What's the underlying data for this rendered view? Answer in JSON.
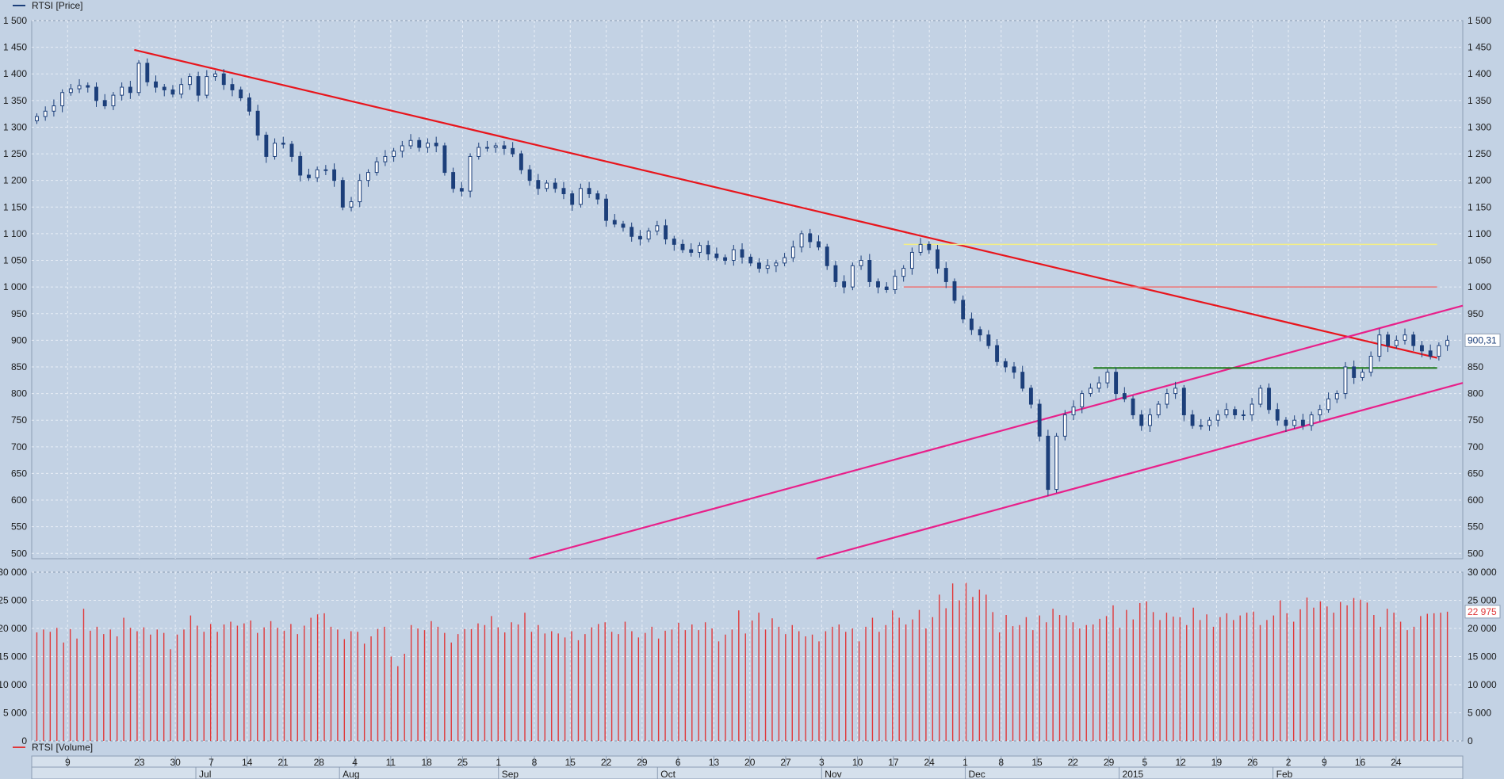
{
  "legend": {
    "price": "RTSI [Price]",
    "volume": "RTSI [Volume]"
  },
  "colors": {
    "background": "#c3d2e4",
    "grid": "#e8eef6",
    "candle": "#1c3f7a",
    "volume": "#e0383a",
    "trend_red": "#e8151c",
    "channel": "#e8208a",
    "resistance_yellow": "#f3ee86",
    "support_green": "#1f7a1f",
    "level_red": "#ee7474"
  },
  "chart_data": [
    {
      "type": "candlestick",
      "title": "RTSI [Price]",
      "ylim": [
        490,
        1500
      ],
      "y_ticks": [
        "1 500",
        "1 450",
        "1 400",
        "1 350",
        "1 300",
        "1 250",
        "1 200",
        "1 150",
        "1 100",
        "1 050",
        "1 000",
        "950",
        "900",
        "850",
        "800",
        "750",
        "700",
        "650",
        "600",
        "550",
        "500"
      ],
      "last_value": "900,31",
      "x_day_labels": [
        "9",
        "23",
        "30",
        "7",
        "14",
        "21",
        "28",
        "4",
        "11",
        "18",
        "25",
        "1",
        "8",
        "15",
        "22",
        "29",
        "6",
        "13",
        "20",
        "27",
        "3",
        "10",
        "17",
        "24",
        "1",
        "8",
        "15",
        "22",
        "29",
        "5",
        "12",
        "19",
        "26",
        "2",
        "9",
        "16",
        "24"
      ],
      "x_month_labels": [
        "Jul",
        "Aug",
        "Sep",
        "Oct",
        "Nov",
        "Dec",
        "2015",
        "Feb"
      ],
      "x_day_positions": [
        9,
        23,
        30,
        37,
        44,
        51,
        58,
        65,
        72,
        79,
        86,
        93,
        100,
        107,
        114,
        121,
        128,
        135,
        142,
        149,
        156,
        163,
        170,
        177,
        184,
        191,
        198,
        205,
        212,
        219,
        226,
        233,
        240,
        247,
        254,
        261,
        268
      ],
      "x_month_positions": [
        34,
        62,
        93,
        124,
        156,
        184,
        214,
        244
      ],
      "x_domain": [
        2,
        281
      ],
      "close": [
        1320,
        1330,
        1340,
        1365,
        1372,
        1378,
        1375,
        1350,
        1340,
        1360,
        1375,
        1365,
        1420,
        1385,
        1375,
        1370,
        1362,
        1380,
        1395,
        1360,
        1395,
        1400,
        1380,
        1370,
        1355,
        1330,
        1285,
        1245,
        1270,
        1268,
        1245,
        1210,
        1205,
        1220,
        1220,
        1200,
        1150,
        1160,
        1200,
        1215,
        1235,
        1245,
        1255,
        1265,
        1275,
        1262,
        1270,
        1265,
        1215,
        1185,
        1180,
        1245,
        1262,
        1262,
        1265,
        1260,
        1250,
        1220,
        1200,
        1185,
        1195,
        1185,
        1175,
        1155,
        1185,
        1175,
        1165,
        1125,
        1118,
        1112,
        1095,
        1090,
        1105,
        1115,
        1090,
        1080,
        1070,
        1065,
        1078,
        1062,
        1055,
        1050,
        1070,
        1056,
        1045,
        1035,
        1040,
        1045,
        1055,
        1075,
        1100,
        1085,
        1075,
        1040,
        1010,
        1000,
        1040,
        1050,
        1010,
        1000,
        995,
        1020,
        1035,
        1065,
        1080,
        1070,
        1035,
        1010,
        975,
        940,
        920,
        910,
        890,
        860,
        850,
        840,
        810,
        780,
        720,
        620,
        720,
        760,
        775,
        800,
        810,
        820,
        840,
        800,
        790,
        760,
        740,
        760,
        780,
        800,
        810,
        760,
        740,
        740,
        750,
        760,
        770,
        760,
        760,
        780,
        810,
        770,
        750,
        740,
        750,
        740,
        760,
        770,
        790,
        800,
        850,
        830,
        840,
        870,
        910,
        890,
        900,
        910,
        890,
        880,
        870,
        890,
        900
      ]
    },
    {
      "type": "bar",
      "title": "RTSI [Volume]",
      "ylim": [
        0,
        30000
      ],
      "y_ticks": [
        "30 000",
        "25 000",
        "20 000",
        "15 000",
        "10 000",
        "5 000",
        "0"
      ],
      "last_value": "22 975",
      "values": [
        19300,
        19800,
        19400,
        20100,
        17500,
        19900,
        18200,
        23500,
        19600,
        20300,
        19000,
        19800,
        18600,
        21900,
        20100,
        19500,
        20200,
        18900,
        19800,
        19200,
        16300,
        18900,
        19800,
        22300,
        20500,
        19400,
        20800,
        19400,
        20700,
        21200,
        20500,
        20900,
        21400,
        19200,
        20200,
        21300,
        20100,
        19600,
        20800,
        19000,
        20500,
        21900,
        22500,
        22700,
        20300,
        19800,
        18100,
        19500,
        19400,
        17300,
        18600,
        19900,
        20300,
        15000,
        13300,
        15500,
        20600,
        20000,
        19700,
        21300,
        20300,
        19200,
        17500,
        19000,
        19900,
        19900,
        20900,
        20600,
        22200,
        20200,
        19300,
        21100,
        20700,
        22800,
        19400,
        20600,
        19100,
        19500,
        19100,
        18400,
        19500,
        17900,
        19000,
        20200,
        20800,
        21100,
        19400,
        19000,
        21200,
        19500,
        18400,
        19200,
        20300,
        18200,
        19600,
        19800,
        21000,
        19700,
        20700,
        19700,
        21100,
        20000,
        17700,
        18900,
        19800,
        23200,
        19100,
        21400,
        22800,
        19800,
        21800,
        20300,
        19000,
        20600,
        19500,
        18600,
        18900,
        17700,
        19500,
        20300,
        20700,
        19400,
        20000,
        17700,
        20300,
        21900,
        19400,
        20600,
        23200,
        21900,
        20700,
        21600,
        23300,
        20000,
        22000,
        26000,
        23600,
        28000,
        25000,
        28100,
        25600,
        26900,
        26000,
        22900,
        19300,
        22400,
        20400,
        20600,
        22000,
        19700,
        22300,
        21100,
        23500,
        22400,
        22300,
        21100,
        20000,
        20600,
        20700,
        21700,
        22200,
        24100,
        20100,
        23300,
        21600,
        24500,
        24800,
        22900,
        21500,
        22800,
        22100,
        22000,
        20600,
        23700,
        21500,
        22500,
        20300,
        22000,
        22700,
        21500,
        22300,
        22800,
        23000,
        20600,
        21500,
        22300,
        25000,
        22700,
        21200,
        23400,
        25500,
        23700,
        24800,
        23900,
        22800,
        24700,
        24100,
        25400,
        25100,
        24600,
        22400,
        20300,
        23500,
        22800,
        21200,
        19700,
        20300,
        22200,
        22600,
        22700,
        22800,
        22975
      ]
    }
  ],
  "annotations": [
    {
      "name": "trendline-down",
      "color": "trend_red",
      "from": [
        22,
        1445
      ],
      "to": [
        276,
        867
      ]
    },
    {
      "name": "channel-upper",
      "color": "channel",
      "from": [
        99,
        490
      ],
      "to": [
        281,
        965
      ]
    },
    {
      "name": "channel-lower",
      "color": "channel",
      "from": [
        155,
        490
      ],
      "to": [
        281,
        820
      ]
    },
    {
      "name": "resistance-1080",
      "color": "resistance_yellow",
      "from": [
        172,
        1080
      ],
      "to": [
        276,
        1080
      ]
    },
    {
      "name": "level-1000",
      "color": "level_red",
      "from": [
        172,
        1000
      ],
      "to": [
        276,
        1000
      ]
    },
    {
      "name": "support-848",
      "color": "support_green",
      "from": [
        209,
        848
      ],
      "to": [
        276,
        848
      ]
    }
  ]
}
